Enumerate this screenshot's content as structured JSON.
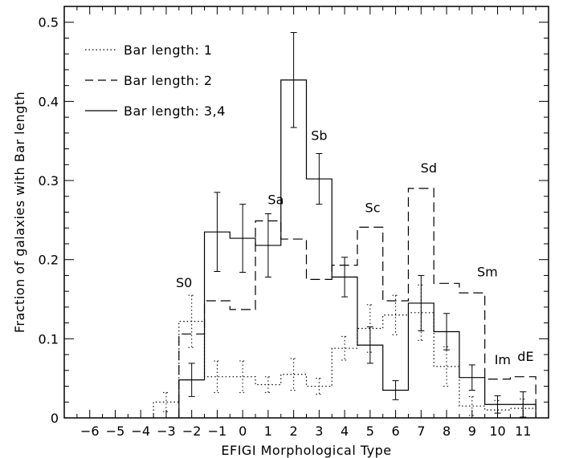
{
  "chart_data": {
    "type": "step-histogram",
    "xlabel": "EFIGI Morphological Type",
    "ylabel": "Fraction of galaxies with Bar length",
    "xlim": [
      -7,
      12
    ],
    "ylim": [
      0,
      0.52
    ],
    "x_ticks": [
      -6,
      -5,
      -4,
      -3,
      -2,
      -1,
      0,
      1,
      2,
      3,
      4,
      5,
      6,
      7,
      8,
      9,
      10,
      11
    ],
    "y_ticks": [
      0,
      0.1,
      0.2,
      0.3,
      0.4,
      0.5
    ],
    "y_tick_labels": [
      "0",
      "0.1",
      "0.2",
      "0.3",
      "0.4",
      "0.5"
    ],
    "legend_position": "top-left",
    "series": [
      {
        "name": "Bar length: 1",
        "style": "dotted",
        "x": [
          -3,
          -2,
          -1,
          0,
          1,
          2,
          3,
          4,
          5,
          6,
          7,
          8,
          9,
          10,
          11
        ],
        "values": [
          0.02,
          0.122,
          0.052,
          0.052,
          0.042,
          0.055,
          0.04,
          0.088,
          0.113,
          0.13,
          0.133,
          0.065,
          0.015,
          0.01,
          0.012
        ],
        "errors": [
          0.012,
          0.033,
          0.02,
          0.02,
          0.01,
          0.02,
          0.01,
          0.015,
          0.03,
          0.025,
          0.035,
          0.025,
          0.012,
          0.012,
          0.012
        ]
      },
      {
        "name": "Bar length: 2",
        "style": "dashed",
        "x": [
          -2,
          -1,
          0,
          1,
          2,
          3,
          4,
          5,
          6,
          7,
          8,
          9,
          10,
          11
        ],
        "values": [
          0.106,
          0.148,
          0.137,
          0.249,
          0.226,
          0.175,
          0.193,
          0.241,
          0.148,
          0.29,
          0.17,
          0.158,
          0.049,
          0.052
        ]
      },
      {
        "name": "Bar length: 3,4",
        "style": "solid",
        "x": [
          -2,
          -1,
          0,
          1,
          2,
          3,
          4,
          5,
          6,
          7,
          8,
          9,
          10,
          11
        ],
        "values": [
          0.048,
          0.235,
          0.227,
          0.218,
          0.427,
          0.302,
          0.178,
          0.092,
          0.035,
          0.145,
          0.109,
          0.051,
          0.017,
          0.017
        ],
        "errors": [
          0.021,
          0.05,
          0.043,
          0.04,
          0.06,
          0.032,
          0.025,
          0.023,
          0.012,
          0.035,
          0.023,
          0.016,
          0.011,
          0.016
        ]
      }
    ],
    "annotations": [
      {
        "text": "S0",
        "x": -2.3,
        "y": 0.165
      },
      {
        "text": "Sa",
        "x": 1.3,
        "y": 0.27
      },
      {
        "text": "Sb",
        "x": 3.0,
        "y": 0.351
      },
      {
        "text": "Sc",
        "x": 5.1,
        "y": 0.26
      },
      {
        "text": "Sd",
        "x": 7.3,
        "y": 0.31
      },
      {
        "text": "Sm",
        "x": 9.6,
        "y": 0.179
      },
      {
        "text": "Im",
        "x": 10.2,
        "y": 0.068
      },
      {
        "text": "dE",
        "x": 11.1,
        "y": 0.072
      }
    ]
  }
}
